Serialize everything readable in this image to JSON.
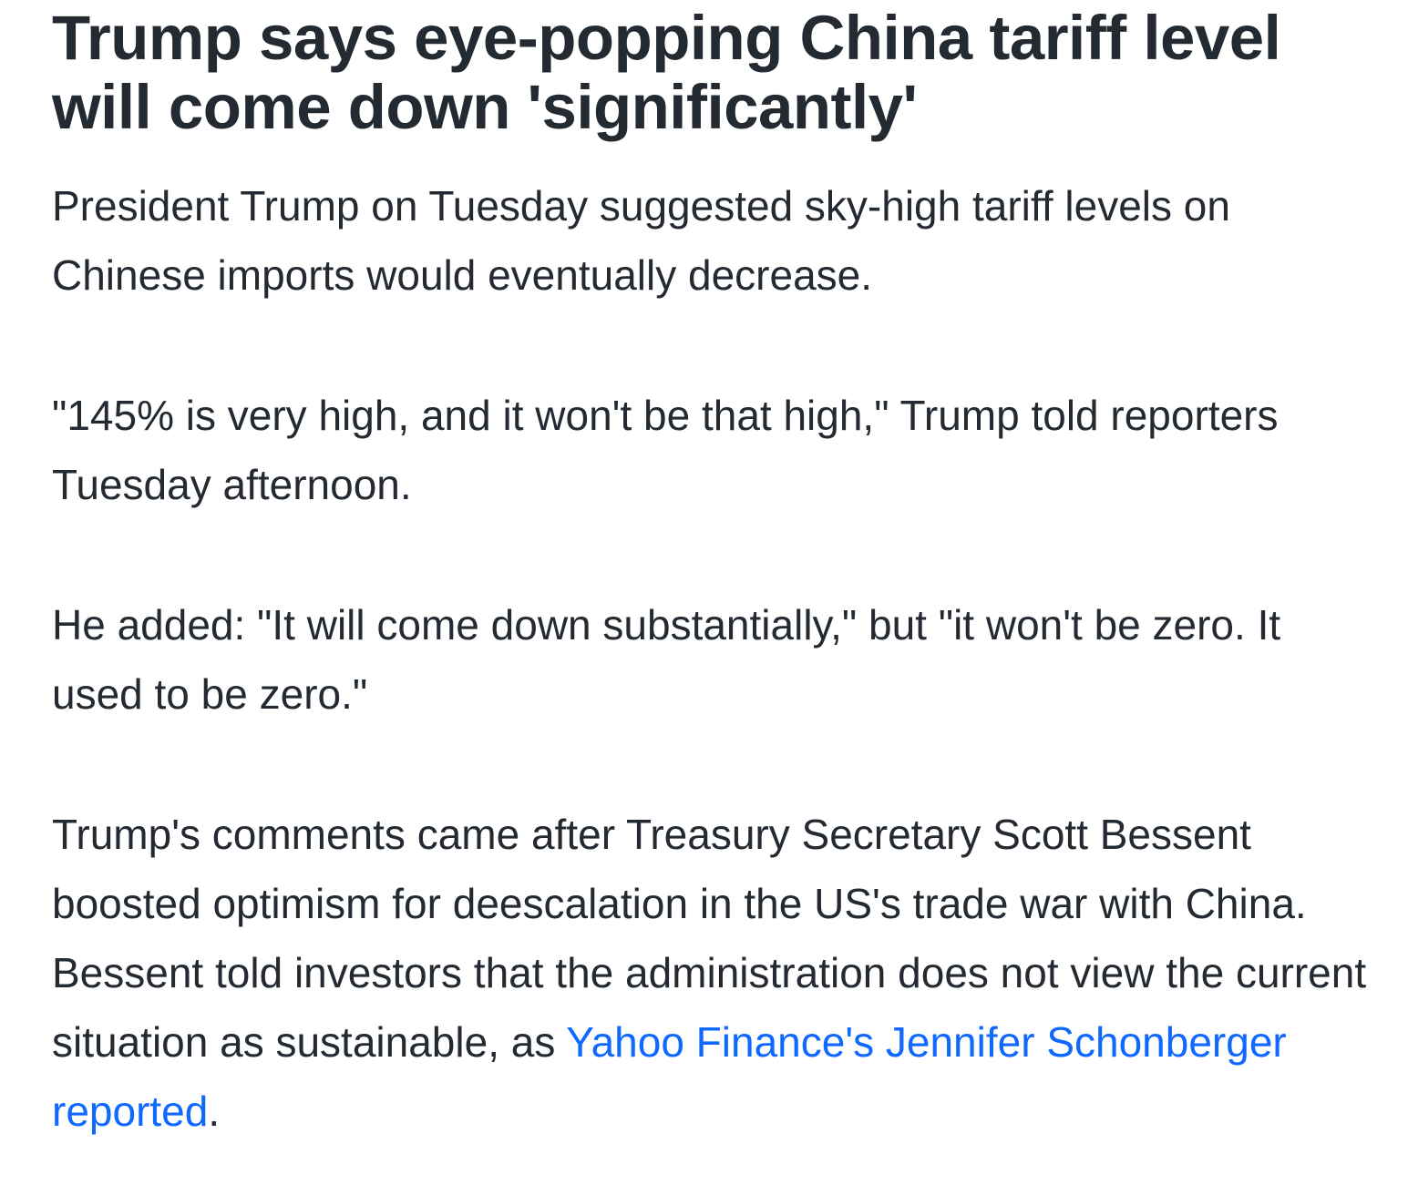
{
  "article": {
    "headline": "Trump says eye-popping China tariff level will come down 'significantly'",
    "paragraphs": {
      "p1": "President Trump on Tuesday suggested sky-high tariff levels on Chinese imports would eventually decrease.",
      "p2": "\"145% is very high, and it won't be that high,\" Trump told reporters Tuesday afternoon.",
      "p3": "He added: \"It will come down substantially,\" but \"it won't be zero. It used to be zero.\"",
      "p4_text": "Trump's comments came after Treasury Secretary Scott Bessent boosted optimism for deescalation in the US's trade war with China. Bessent told investors that the administration does not view the current situation as sustainable, as ",
      "p4_link": "Yahoo Finance's Jennifer Schonberger reported",
      "p4_end": "."
    },
    "colors": {
      "text": "#232a31",
      "link": "#0f69ff"
    }
  }
}
